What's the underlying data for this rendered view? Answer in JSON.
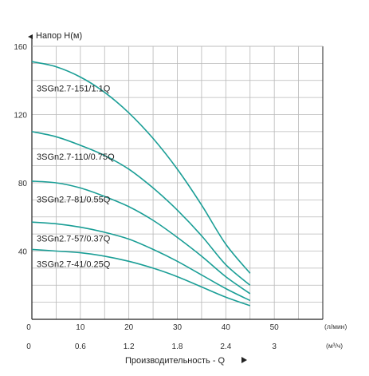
{
  "chart_data": {
    "type": "line",
    "ylabel": "Напор Н(м)",
    "xlabel": "Производительность - Q",
    "x_unit": "(л/мин)",
    "x2_unit": "(м³/ч)",
    "xlim": [
      0,
      60
    ],
    "ylim": [
      0,
      160
    ],
    "x_ticks": [
      "0",
      "10",
      "20",
      "30",
      "40",
      "50"
    ],
    "x2_ticks": [
      "0",
      "0.6",
      "1.2",
      "1.8",
      "2.4",
      "3"
    ],
    "y_ticks": [
      "40",
      "80",
      "120",
      "160"
    ],
    "grid": true,
    "line_color": "#1a9e96",
    "series": [
      {
        "name": "3SGn2.7-151/1.1Q",
        "x": [
          0,
          5,
          10,
          15,
          20,
          25,
          30,
          35,
          40,
          45
        ],
        "y": [
          151,
          148,
          142,
          133,
          121,
          106,
          88,
          67,
          44,
          27
        ]
      },
      {
        "name": "3SGn2.7-110/0.75Q",
        "x": [
          0,
          5,
          10,
          15,
          20,
          25,
          30,
          35,
          40,
          45
        ],
        "y": [
          110,
          107,
          102,
          96,
          88,
          77,
          64,
          49,
          32,
          20
        ]
      },
      {
        "name": "3SGn2.7-81/0.55Q",
        "x": [
          0,
          5,
          10,
          15,
          20,
          25,
          30,
          35,
          40,
          45
        ],
        "y": [
          81,
          80,
          77,
          72,
          66,
          58,
          48,
          37,
          25,
          15
        ]
      },
      {
        "name": "3SGn2.7-57/0.37Q",
        "x": [
          0,
          5,
          10,
          15,
          20,
          25,
          30,
          35,
          40,
          45
        ],
        "y": [
          57,
          56,
          54,
          51,
          47,
          41,
          34,
          26,
          18,
          11
        ]
      },
      {
        "name": "3SGn2.7-41/0.25Q",
        "x": [
          0,
          5,
          10,
          15,
          20,
          25,
          30,
          35,
          40,
          45
        ],
        "y": [
          41,
          40,
          39,
          37,
          34,
          30,
          25,
          19,
          13,
          8
        ]
      }
    ]
  }
}
